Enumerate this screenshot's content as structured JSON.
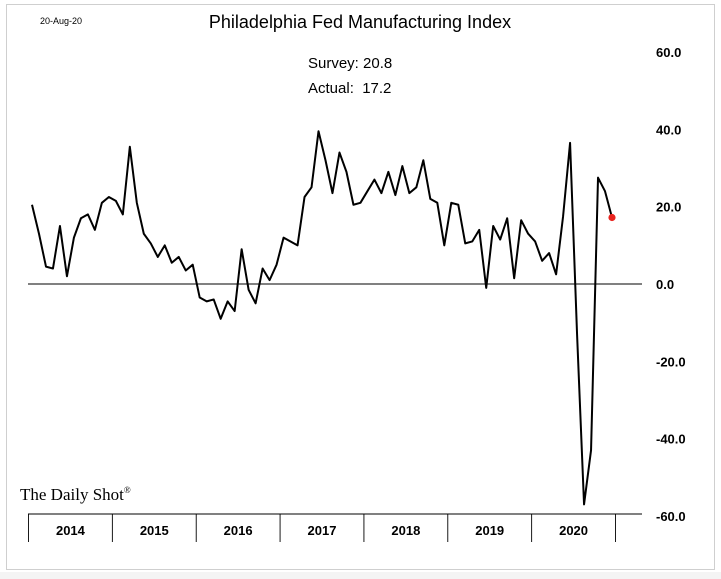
{
  "date_stamp": "20-Aug-20",
  "brand": "The Daily Shot",
  "brand_mark": "®",
  "survey_text": "Survey: 20.8",
  "actual_text": "Actual:  17.2",
  "chart_data": {
    "type": "line",
    "title": "Philadelphia Fed Manufacturing Index",
    "xlabel": "",
    "ylabel": "",
    "ylim": [
      -60,
      60
    ],
    "yticks": [
      "60.0",
      "40.0",
      "20.0",
      "0.0",
      "-20.0",
      "-40.0",
      "-60.0"
    ],
    "ytick_values": [
      60,
      40,
      20,
      0,
      -20,
      -40,
      -60
    ],
    "year_labels": [
      "2014",
      "2015",
      "2016",
      "2017",
      "2018",
      "2019",
      "2020"
    ],
    "start": "2014-01",
    "frequency": "monthly",
    "grid": false,
    "zero_line": true,
    "series": [
      {
        "values": [
          20.5,
          13,
          4.5,
          4,
          15,
          2,
          12,
          17,
          18,
          14,
          21,
          22.5,
          21.5,
          18,
          35.5,
          21,
          13,
          10.5,
          7,
          10,
          5.5,
          7,
          3.5,
          5,
          -3.5,
          -4.5,
          -4,
          -9,
          -4.5,
          -7,
          9,
          -1.5,
          -5,
          4,
          1,
          5,
          12,
          11,
          10,
          22.5,
          25,
          39.5,
          32,
          23.5,
          34,
          29,
          20.5,
          21,
          24,
          27,
          23.5,
          29,
          23,
          30.5,
          23.5,
          25,
          32,
          22,
          21,
          10,
          21,
          20.5,
          10.5,
          11,
          14,
          -1,
          15,
          11.5,
          17,
          1.5,
          16.5,
          13,
          11,
          6,
          8,
          2.5,
          17.5,
          36.5,
          -13,
          -57,
          -43,
          27.5,
          24,
          17.2
        ]
      }
    ],
    "last_point_color": "#e8231e",
    "line_color": "#000000"
  }
}
